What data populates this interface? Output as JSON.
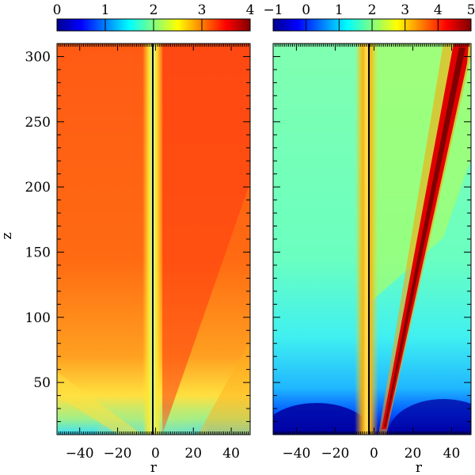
{
  "chart_data": [
    {
      "type": "heatmap",
      "xlabel": "r",
      "ylabel": "z",
      "xlim": [
        -52,
        50
      ],
      "ylim": [
        10,
        310
      ],
      "xticks": [
        -40,
        -20,
        0,
        20,
        40
      ],
      "xtick_labels": [
        "−40",
        "−20",
        "0",
        "20",
        "40"
      ],
      "yticks": [
        50,
        100,
        150,
        200,
        250,
        300
      ],
      "ytick_labels": [
        "50",
        "100",
        "150",
        "200",
        "250",
        "300"
      ],
      "colorbar": {
        "position": "top",
        "range": [
          0,
          4
        ],
        "ticks": [
          0,
          1,
          2,
          3,
          4
        ],
        "tick_labels": [
          "0",
          "1",
          "2",
          "3",
          "4"
        ],
        "colormap": "jet"
      }
    },
    {
      "type": "heatmap",
      "xlabel": "r",
      "ylabel": "",
      "xlim": [
        -52,
        50
      ],
      "ylim": [
        10,
        310
      ],
      "xticks": [
        -40,
        -20,
        0,
        20,
        40
      ],
      "xtick_labels": [
        "−40",
        "−20",
        "0",
        "20",
        "40"
      ],
      "yticks": [
        50,
        100,
        150,
        200,
        250,
        300
      ],
      "ytick_labels": [],
      "colorbar": {
        "position": "top",
        "range": [
          -1,
          5
        ],
        "ticks": [
          -1,
          0,
          1,
          2,
          3,
          4,
          5
        ],
        "tick_labels": [
          "−1",
          "0",
          "1",
          "2",
          "3",
          "4",
          "5"
        ],
        "colormap": "jet"
      }
    }
  ],
  "colors": {
    "jet_stops": [
      "#00008f",
      "#0000ff",
      "#00ffff",
      "#ffff00",
      "#ff0000",
      "#800000"
    ]
  }
}
